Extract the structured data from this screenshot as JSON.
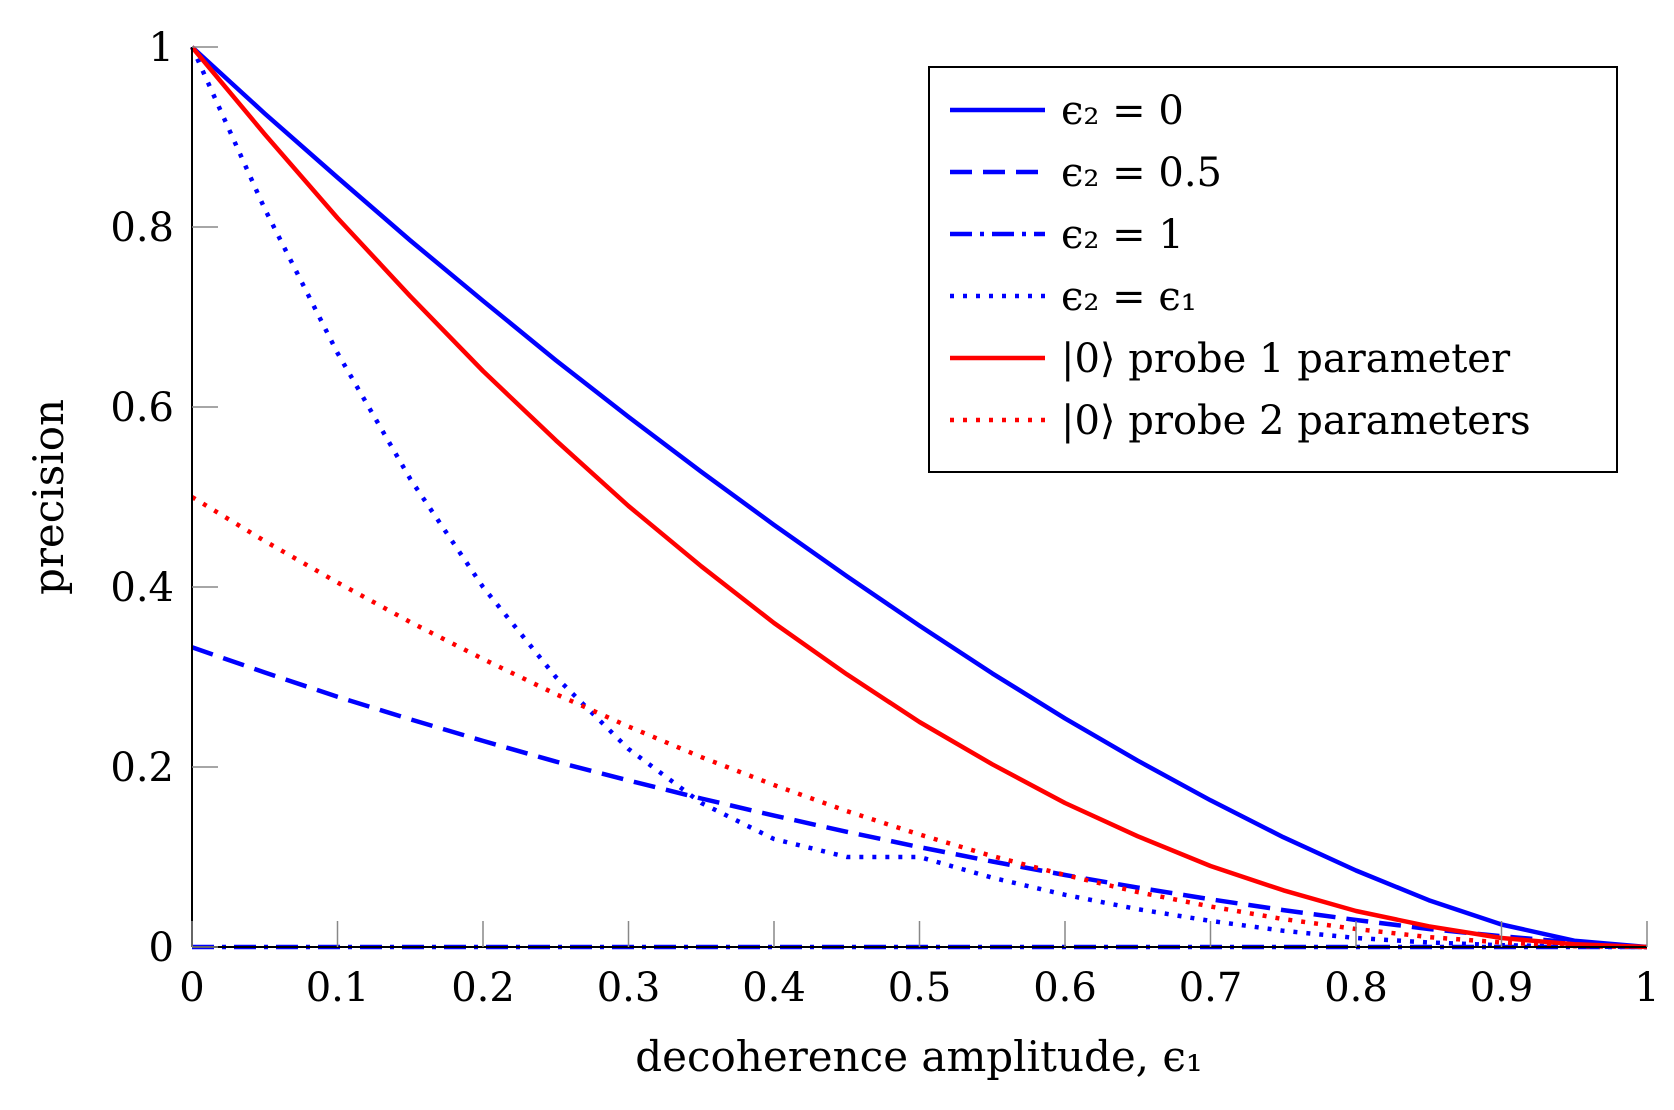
{
  "chart_data": {
    "type": "line",
    "xlabel": "decoherence amplitude, ϵ₁",
    "ylabel": "precision",
    "xlim": [
      0,
      1
    ],
    "ylim": [
      0,
      1
    ],
    "xticks": [
      "0",
      "0.1",
      "0.2",
      "0.3",
      "0.4",
      "0.5",
      "0.6",
      "0.7",
      "0.8",
      "0.9",
      "1"
    ],
    "yticks": [
      "0",
      "0.2",
      "0.4",
      "0.6",
      "0.8",
      "1"
    ],
    "grid": false,
    "legend_position": "top-right",
    "x": [
      0,
      0.05,
      0.1,
      0.15,
      0.2,
      0.25,
      0.3,
      0.35,
      0.4,
      0.45,
      0.5,
      0.55,
      0.6,
      0.65,
      0.7,
      0.75,
      0.8,
      0.85,
      0.9,
      0.95,
      1
    ],
    "series": [
      {
        "name": "ϵ₂ = 0",
        "color": "#0000ff",
        "dash": "solid",
        "values": [
          1.0,
          0.926,
          0.855,
          0.785,
          0.718,
          0.652,
          0.589,
          0.528,
          0.469,
          0.412,
          0.357,
          0.304,
          0.254,
          0.207,
          0.163,
          0.122,
          0.085,
          0.052,
          0.025,
          0.007,
          0.0
        ]
      },
      {
        "name": "ϵ₂ = 0.5",
        "color": "#0000ff",
        "dash": "dashed",
        "values": [
          0.333,
          0.305,
          0.278,
          0.253,
          0.229,
          0.206,
          0.185,
          0.165,
          0.146,
          0.128,
          0.111,
          0.095,
          0.08,
          0.066,
          0.053,
          0.041,
          0.03,
          0.02,
          0.012,
          0.005,
          0.0
        ]
      },
      {
        "name": "ϵ₂ = 1",
        "color": "#0000ff",
        "dash": "dashdot",
        "values": [
          0,
          0,
          0,
          0,
          0,
          0,
          0,
          0,
          0,
          0,
          0,
          0,
          0,
          0,
          0,
          0,
          0,
          0,
          0,
          0,
          0
        ]
      },
      {
        "name": "ϵ₂ = ϵ₁",
        "color": "#0000ff",
        "dash": "dotted",
        "values": [
          1.0,
          0.82,
          0.66,
          0.52,
          0.4,
          0.3,
          0.22,
          0.16,
          0.12,
          0.1,
          0.1,
          0.077,
          0.058,
          0.042,
          0.029,
          0.018,
          0.01,
          0.005,
          0.002,
          0.0005,
          0.0
        ]
      },
      {
        "name": "|0⟩ probe 1 parameter",
        "color": "#ff0000",
        "dash": "solid",
        "values": [
          1.0,
          0.903,
          0.81,
          0.723,
          0.64,
          0.563,
          0.49,
          0.423,
          0.36,
          0.303,
          0.25,
          0.203,
          0.16,
          0.123,
          0.09,
          0.063,
          0.04,
          0.023,
          0.01,
          0.003,
          0.0
        ]
      },
      {
        "name": "|0⟩ probe 2 parameters",
        "color": "#ff0000",
        "dash": "dotted",
        "values": [
          0.5,
          0.451,
          0.405,
          0.361,
          0.32,
          0.281,
          0.245,
          0.211,
          0.18,
          0.151,
          0.125,
          0.101,
          0.08,
          0.061,
          0.045,
          0.031,
          0.02,
          0.011,
          0.005,
          0.001,
          0.0
        ]
      }
    ]
  }
}
